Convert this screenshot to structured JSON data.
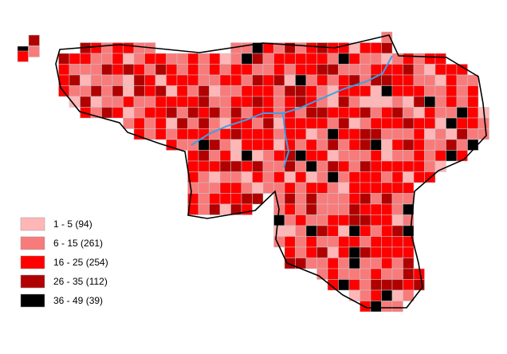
{
  "legend": {
    "items": [
      {
        "label": "1 - 5 (94)",
        "color": "#ffb6b6"
      },
      {
        "label": "6 - 15 (261)",
        "color": "#f87b7b"
      },
      {
        "label": "16 - 25 (254)",
        "color": "#ff0000"
      },
      {
        "label": "26 - 35 (112)",
        "color": "#b00000"
      },
      {
        "label": "36 - 49 (39)",
        "color": "#000000"
      }
    ]
  }
}
